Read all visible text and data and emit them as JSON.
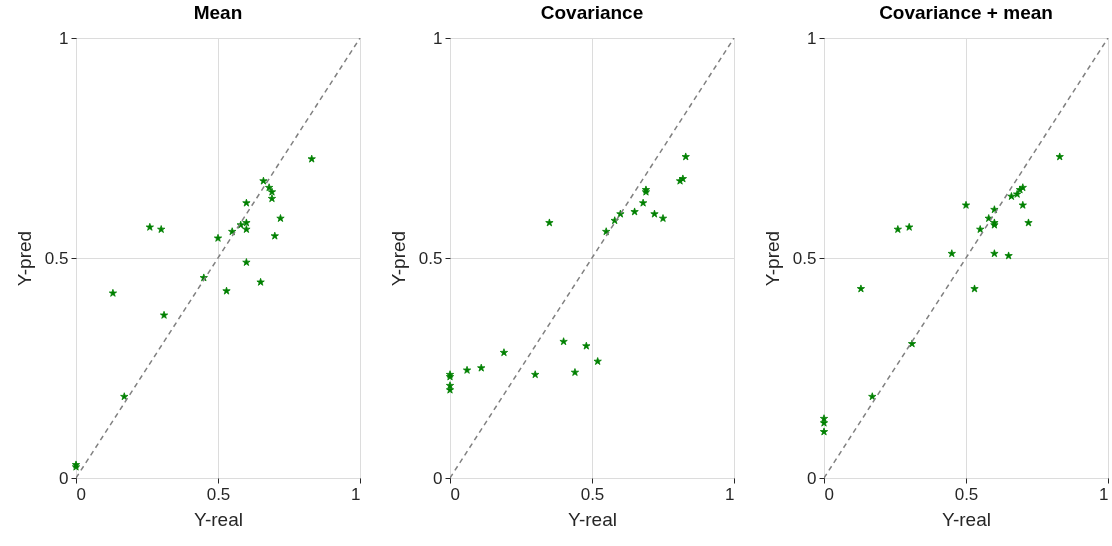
{
  "chart_data": [
    {
      "type": "scatter",
      "title": "Mean",
      "xlabel": "Y-real",
      "ylabel": "Y-pred",
      "xlim": [
        0,
        1
      ],
      "ylim": [
        0,
        1
      ],
      "xticks": [
        0,
        0.5,
        1
      ],
      "yticks": [
        0,
        0.5,
        1
      ],
      "grid": true,
      "series": [
        {
          "type": "scatter",
          "marker": "star",
          "color": "#008000",
          "x": [
            0,
            0,
            0.13,
            0.17,
            0.26,
            0.3,
            0.31,
            0.45,
            0.5,
            0.53,
            0.55,
            0.58,
            0.6,
            0.6,
            0.6,
            0.6,
            0.65,
            0.66,
            0.68,
            0.69,
            0.69,
            0.7,
            0.72,
            0.83
          ],
          "values": [
            0.03,
            0.025,
            0.42,
            0.185,
            0.57,
            0.565,
            0.37,
            0.455,
            0.545,
            0.425,
            0.56,
            0.575,
            0.58,
            0.565,
            0.625,
            0.49,
            0.445,
            0.675,
            0.66,
            0.65,
            0.635,
            0.55,
            0.59,
            0.725
          ]
        },
        {
          "type": "line",
          "line_style": "dashed",
          "color": "#808080",
          "x": [
            0,
            1
          ],
          "values": [
            0,
            1
          ]
        }
      ]
    },
    {
      "type": "scatter",
      "title": "Covariance",
      "xlabel": "Y-real",
      "ylabel": "Y-pred",
      "xlim": [
        0,
        1
      ],
      "ylim": [
        0,
        1
      ],
      "xticks": [
        0,
        0.5,
        1
      ],
      "yticks": [
        0,
        0.5,
        1
      ],
      "grid": true,
      "series": [
        {
          "type": "scatter",
          "marker": "star",
          "color": "#008000",
          "x": [
            0,
            0,
            0,
            0,
            0.06,
            0.11,
            0.19,
            0.3,
            0.35,
            0.4,
            0.44,
            0.48,
            0.52,
            0.55,
            0.58,
            0.6,
            0.65,
            0.68,
            0.69,
            0.69,
            0.72,
            0.75,
            0.81,
            0.82,
            0.83
          ],
          "values": [
            0.2,
            0.21,
            0.23,
            0.235,
            0.245,
            0.25,
            0.285,
            0.235,
            0.58,
            0.31,
            0.24,
            0.3,
            0.265,
            0.56,
            0.585,
            0.6,
            0.605,
            0.625,
            0.65,
            0.655,
            0.6,
            0.59,
            0.675,
            0.68,
            0.73
          ]
        },
        {
          "type": "line",
          "line_style": "dashed",
          "color": "#808080",
          "x": [
            0,
            1
          ],
          "values": [
            0,
            1
          ]
        }
      ]
    },
    {
      "type": "scatter",
      "title": "Covariance + mean",
      "xlabel": "Y-real",
      "ylabel": "Y-pred",
      "xlim": [
        0,
        1
      ],
      "ylim": [
        0,
        1
      ],
      "xticks": [
        0,
        0.5,
        1
      ],
      "yticks": [
        0,
        0.5,
        1
      ],
      "grid": true,
      "series": [
        {
          "type": "scatter",
          "marker": "star",
          "color": "#008000",
          "x": [
            0,
            0,
            0,
            0.13,
            0.17,
            0.26,
            0.3,
            0.31,
            0.45,
            0.5,
            0.53,
            0.55,
            0.58,
            0.6,
            0.6,
            0.6,
            0.6,
            0.65,
            0.66,
            0.68,
            0.69,
            0.7,
            0.7,
            0.72,
            0.83
          ],
          "values": [
            0.105,
            0.125,
            0.135,
            0.43,
            0.185,
            0.565,
            0.57,
            0.305,
            0.51,
            0.62,
            0.43,
            0.565,
            0.59,
            0.575,
            0.58,
            0.61,
            0.51,
            0.505,
            0.64,
            0.645,
            0.655,
            0.66,
            0.62,
            0.58,
            0.73
          ]
        },
        {
          "type": "line",
          "line_style": "dashed",
          "color": "#808080",
          "x": [
            0,
            1
          ],
          "values": [
            0,
            1
          ]
        }
      ]
    }
  ]
}
